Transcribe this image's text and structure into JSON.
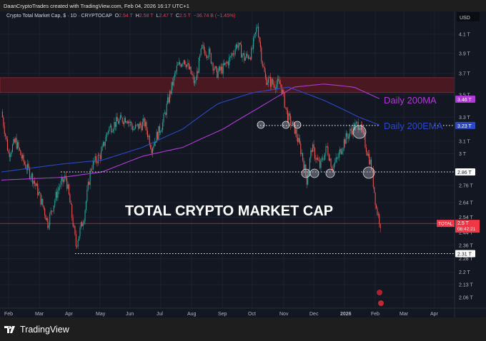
{
  "credit": "DaanCryptoTrades created with TradingView.com, Feb 04, 2026 16:17 UTC+1",
  "legend": {
    "symbol": "Crypto Total Market Cap, $ · 1D · CRYPTOCAP",
    "o_label": "O",
    "o": "2.54 T",
    "h_label": "H",
    "h": "2.58 T",
    "l_label": "L",
    "l": "2.47 T",
    "c_label": "C",
    "c": "2.5 T",
    "change": "−36.74 B (−1.45%)"
  },
  "axis": {
    "currency": "USD",
    "price_ticks": [
      "4.1 T",
      "3.9 T",
      "3.7 T",
      "3.5 T",
      "3.3 T",
      "3.1 T",
      "3 T",
      "2.76 T",
      "2.64 T",
      "2.54 T",
      "2.44 T",
      "2.36 T",
      "2.28 T",
      "2.2 T",
      "2.13 T",
      "2.06 T"
    ],
    "price_tick_values": [
      4.1,
      3.9,
      3.7,
      3.5,
      3.3,
      3.1,
      3.0,
      2.76,
      2.64,
      2.54,
      2.44,
      2.36,
      2.28,
      2.2,
      2.13,
      2.06
    ],
    "time_ticks": [
      "Feb",
      "Mar",
      "Apr",
      "May",
      "Jun",
      "Jul",
      "Aug",
      "Sep",
      "Oct",
      "Nov",
      "Dec",
      "2026",
      "Feb",
      "Mar",
      "Apr"
    ]
  },
  "badges": {
    "ma": "3.46 T",
    "ema": "3.23 T",
    "support": "2.86 T",
    "last": "2.5 T",
    "countdown": "08:42:21",
    "symbol_tag": "TOTAL",
    "low": "2.31 T"
  },
  "annotations": {
    "title": "TOTAL CRYPTO MARKET CAP",
    "ma_label": "Daily 200MA",
    "ema_label": "Daily 200EMA"
  },
  "colors": {
    "up": "#26a69a",
    "down": "#ef5350",
    "ma": "#b03ad6",
    "ema": "#2a48c8",
    "last": "#f23645"
  },
  "chart_data": {
    "type": "candlestick",
    "unit": "T USD",
    "price_path": [
      [
        0,
        3.35
      ],
      [
        7,
        3.0
      ],
      [
        14,
        3.1
      ],
      [
        21,
        2.95
      ],
      [
        32,
        2.8
      ],
      [
        42,
        2.6
      ],
      [
        46,
        2.5
      ],
      [
        57,
        2.75
      ],
      [
        64,
        2.82
      ],
      [
        71,
        2.5
      ],
      [
        74,
        2.36
      ],
      [
        82,
        2.55
      ],
      [
        89,
        2.9
      ],
      [
        99,
        3.0
      ],
      [
        106,
        3.2
      ],
      [
        113,
        3.25
      ],
      [
        124,
        3.3
      ],
      [
        131,
        3.2
      ],
      [
        142,
        3.25
      ],
      [
        149,
        3.05
      ],
      [
        160,
        3.25
      ],
      [
        167,
        3.5
      ],
      [
        174,
        3.75
      ],
      [
        181,
        3.85
      ],
      [
        188,
        3.7
      ],
      [
        192,
        3.6
      ],
      [
        199,
        3.95
      ],
      [
        206,
        3.9
      ],
      [
        213,
        3.7
      ],
      [
        220,
        3.75
      ],
      [
        227,
        3.85
      ],
      [
        234,
        4.0
      ],
      [
        241,
        3.85
      ],
      [
        248,
        3.9
      ],
      [
        254,
        4.2
      ],
      [
        259,
        3.8
      ],
      [
        262,
        3.65
      ],
      [
        270,
        3.6
      ],
      [
        277,
        3.6
      ],
      [
        284,
        3.3
      ],
      [
        291,
        3.2
      ],
      [
        298,
        3.0
      ],
      [
        303,
        2.8
      ],
      [
        308,
        3.05
      ],
      [
        316,
        2.9
      ],
      [
        323,
        3.05
      ],
      [
        328,
        2.9
      ],
      [
        333,
        2.95
      ],
      [
        340,
        3.1
      ],
      [
        348,
        3.2
      ],
      [
        355,
        3.25
      ],
      [
        362,
        3.05
      ],
      [
        367,
        2.9
      ],
      [
        372,
        2.6
      ],
      [
        376,
        2.5
      ]
    ],
    "ma200": [
      [
        0,
        2.8
      ],
      [
        60,
        2.82
      ],
      [
        100,
        2.86
      ],
      [
        140,
        2.98
      ],
      [
        180,
        3.05
      ],
      [
        220,
        3.2
      ],
      [
        255,
        3.38
      ],
      [
        290,
        3.57
      ],
      [
        320,
        3.6
      ],
      [
        350,
        3.57
      ],
      [
        376,
        3.46
      ]
    ],
    "ema200": [
      [
        0,
        2.86
      ],
      [
        60,
        2.92
      ],
      [
        100,
        2.95
      ],
      [
        140,
        3.05
      ],
      [
        180,
        3.2
      ],
      [
        215,
        3.42
      ],
      [
        250,
        3.52
      ],
      [
        285,
        3.57
      ],
      [
        320,
        3.45
      ],
      [
        355,
        3.3
      ],
      [
        376,
        3.23
      ]
    ],
    "levels": {
      "resistance_zone": [
        3.52,
        3.66
      ],
      "ema_level": 3.23,
      "support": 2.86,
      "low": 2.31,
      "last": 2.5
    }
  }
}
